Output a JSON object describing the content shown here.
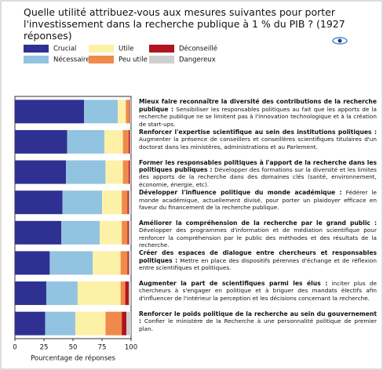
{
  "chart_data": {
    "type": "stacked-barh",
    "title": "Quelle utilité attribuez-vous aux mesures suivantes pour porter l'investissement dans la recherche publique à 1 % du PIB ? (1927 réponses)",
    "xlabel": "Pourcentage de réponses",
    "xlim": [
      0,
      100
    ],
    "xticks": [
      0,
      25,
      50,
      75,
      100
    ],
    "categories": [
      "Mieux faire reconnaître la diversité des contributions de la recherche publique :",
      "Renforcer l'expertise scientifique au sein des institutions politiques :",
      "Former les responsables politiques à l'apport de la recherche dans les politiques publiques :",
      "Développer l'influence politique du monde académique :",
      "Améliorer la compréhension de la recherche par le grand public :",
      "Créer des espaces de dialogue entre chercheurs et responsables politiques :",
      "Augmenter la part de scientifiques parmi les élus :",
      "Renforcer le poids politique de la recherche au sein du gouvernement :"
    ],
    "descriptions": [
      "Sensibiliser les responsables politiques au fait que les apports de la recherche publique ne se limitent pas à l'innovation technologique et à la création de start-ups.",
      "Augmenter la présence de conseillers et conseillères scientifiques titulaires d'un doctorat dans les ministères, administrations et au Parlement.",
      "Développer des formations sur la diversité et les limites des apports de la recherche dans des domaines clés (santé, environnement, économie, énergie, etc).",
      "Fédérer le monde académique, actuellement divisé, pour porter un plaidoyer efficace en faveur du financement de la recherche publique.",
      "Développer des programmes d'information et de médiation scientifique pour renforcer la compréhension par le public des méthodes et des résultats de la recherche.",
      "Mettre en place des dispositifs pérennes d'échange et de réflexion entre scientifiques et politiques.",
      "inciter plus de chercheurs à s'engager en politique et à briguer des mandats électifs afin d'influencer de l'intérieur la perception et les décisions concernant la recherche.",
      "Confier le ministère de la Recherche à une personnalité politique de premier plan."
    ],
    "series": [
      {
        "name": "Crucial",
        "color": "#2e3192",
        "values": [
          59.5,
          45,
          44,
          41,
          40,
          30,
          27,
          26
        ]
      },
      {
        "name": "Nécessaire",
        "color": "#92c3e0",
        "values": [
          29,
          32,
          34,
          34,
          33,
          37,
          27,
          26
        ]
      },
      {
        "name": "Utile",
        "color": "#fdf1a8",
        "values": [
          7,
          16,
          15,
          17,
          19,
          24,
          37,
          26
        ]
      },
      {
        "name": "Peu utile",
        "color": "#f08a4b",
        "values": [
          3,
          5,
          5,
          5,
          5,
          6,
          4,
          14
        ]
      },
      {
        "name": "Déconseillé",
        "color": "#b0141e",
        "values": [
          0.5,
          1,
          1,
          1,
          1,
          1,
          3,
          4
        ]
      },
      {
        "name": "Dangereux",
        "color": "#cfcfcf",
        "values": [
          1,
          1,
          1,
          2,
          2,
          2,
          2,
          4
        ]
      }
    ]
  }
}
